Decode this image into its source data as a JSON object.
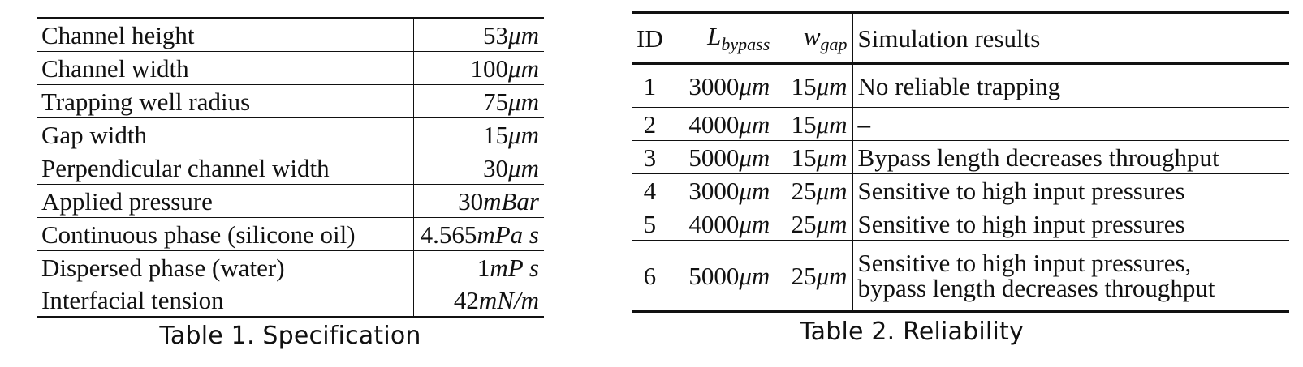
{
  "table1": {
    "rows": [
      {
        "label": "Channel height",
        "num": "53",
        "unit": "μm"
      },
      {
        "label": "Channel width",
        "num": "100",
        "unit": "μm"
      },
      {
        "label": "Trapping well radius",
        "num": "75",
        "unit": "μm"
      },
      {
        "label": "Gap width",
        "num": "15",
        "unit": "μm"
      },
      {
        "label": "Perpendicular channel width",
        "num": "30",
        "unit": "μm"
      },
      {
        "label": "Applied pressure",
        "num": "30",
        "unit": "mBar"
      },
      {
        "label": "Continuous phase (silicone oil)",
        "num": "4.565",
        "unit": "mPa s"
      },
      {
        "label": "Dispersed phase (water)",
        "num": "1",
        "unit": "mP s"
      },
      {
        "label": "Interfacial tension",
        "num": "42",
        "unit": "mN/m"
      }
    ],
    "caption": "Table 1.  Specification"
  },
  "table2": {
    "headers": {
      "id": "ID",
      "l_main": "L",
      "l_sub": "bypass",
      "w_main": "w",
      "w_sub": "gap",
      "results": "Simulation results"
    },
    "rows": [
      {
        "id": "1",
        "l_num": "3000",
        "l_unit": "μm",
        "w_num": "15",
        "w_unit": "μm",
        "result": "No reliable trapping"
      },
      {
        "id": "2",
        "l_num": "4000",
        "l_unit": "μm",
        "w_num": "15",
        "w_unit": "μm",
        "result": "–"
      },
      {
        "id": "3",
        "l_num": "5000",
        "l_unit": "μm",
        "w_num": "15",
        "w_unit": "μm",
        "result": "Bypass length decreases throughput"
      },
      {
        "id": "4",
        "l_num": "3000",
        "l_unit": "μm",
        "w_num": "25",
        "w_unit": "μm",
        "result": "Sensitive to high input pressures"
      },
      {
        "id": "5",
        "l_num": "4000",
        "l_unit": "μm",
        "w_num": "25",
        "w_unit": "μm",
        "result": "Sensitive to high input pressures"
      },
      {
        "id": "6",
        "l_num": "5000",
        "l_unit": "μm",
        "w_num": "25",
        "w_unit": "μm",
        "result": "Sensitive to high input pressures, bypass length decreases throughput",
        "result_line1": "Sensitive to high input pressures,",
        "result_line2": "bypass length decreases throughput"
      }
    ],
    "caption": "Table 2.  Reliability"
  }
}
